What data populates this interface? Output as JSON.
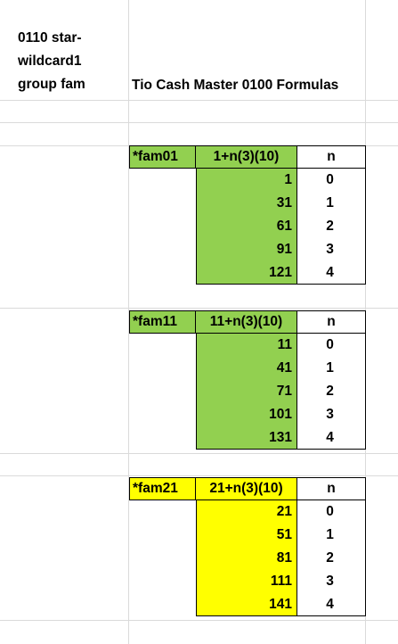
{
  "header": {
    "left_lines": [
      "0110 star-",
      "wildcard1",
      "group fam"
    ],
    "title": "Tio Cash Master 0100 Formulas"
  },
  "blocks": [
    {
      "fam": "*fam01",
      "formula": "1+n(3)(10)",
      "n_label": "n",
      "color": "#92d050",
      "rows": [
        {
          "value": "1",
          "n": "0"
        },
        {
          "value": "31",
          "n": "1"
        },
        {
          "value": "61",
          "n": "2"
        },
        {
          "value": "91",
          "n": "3"
        },
        {
          "value": "121",
          "n": "4"
        }
      ]
    },
    {
      "fam": "*fam11",
      "formula": "11+n(3)(10)",
      "n_label": "n",
      "color": "#92d050",
      "rows": [
        {
          "value": "11",
          "n": "0"
        },
        {
          "value": "41",
          "n": "1"
        },
        {
          "value": "71",
          "n": "2"
        },
        {
          "value": "101",
          "n": "3"
        },
        {
          "value": "131",
          "n": "4"
        }
      ]
    },
    {
      "fam": "*fam21",
      "formula": "21+n(3)(10)",
      "n_label": "n",
      "color": "#ffff00",
      "rows": [
        {
          "value": "21",
          "n": "0"
        },
        {
          "value": "51",
          "n": "1"
        },
        {
          "value": "81",
          "n": "2"
        },
        {
          "value": "111",
          "n": "3"
        },
        {
          "value": "141",
          "n": "4"
        }
      ]
    }
  ]
}
